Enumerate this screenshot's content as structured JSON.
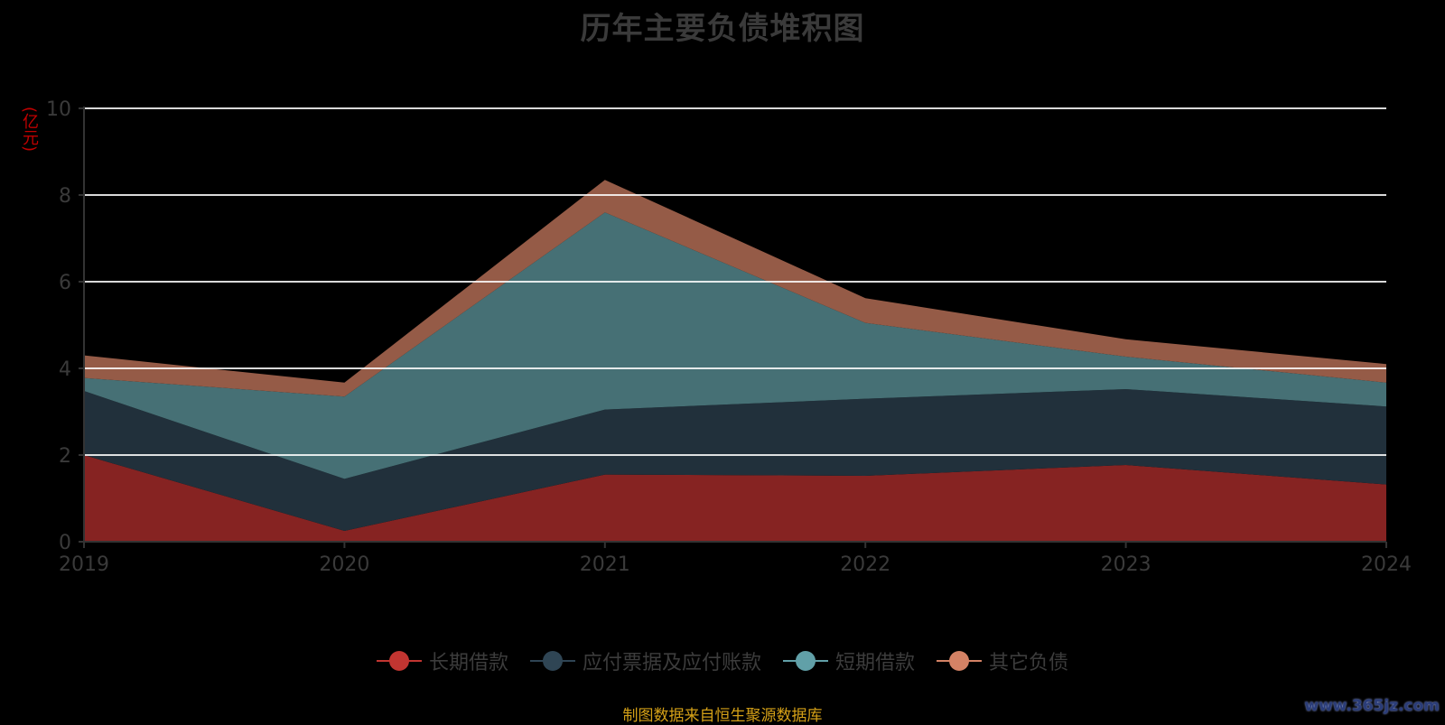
{
  "chart_data": {
    "type": "area",
    "stacked": true,
    "title": "历年主要负债堆积图",
    "ylabel": "(亿元)",
    "x": [
      "2019",
      "2020",
      "2021",
      "2022",
      "2023",
      "2024"
    ],
    "ylim": [
      0,
      10
    ],
    "yticks": [
      0,
      2,
      4,
      6,
      8,
      10
    ],
    "grid": true,
    "legend_position": "bottom",
    "series": [
      {
        "name": "长期借款",
        "color": "#c23531",
        "fill": "#862322",
        "values": [
          2.0,
          0.25,
          1.55,
          1.52,
          1.77,
          1.32
        ]
      },
      {
        "name": "应付票据及应付账款",
        "color": "#2f4554",
        "fill": "#21303b",
        "values": [
          1.48,
          1.2,
          1.5,
          1.78,
          1.75,
          1.8
        ]
      },
      {
        "name": "短期借款",
        "color": "#61a0a8",
        "fill": "#467075",
        "values": [
          0.3,
          1.9,
          4.55,
          1.75,
          0.75,
          0.55
        ]
      },
      {
        "name": "其它负债",
        "color": "#d48265",
        "fill": "#955b47",
        "values": [
          0.52,
          0.32,
          0.75,
          0.57,
          0.4,
          0.43
        ]
      }
    ]
  },
  "footer": {
    "source": "制图数据来自恒生聚源数据库",
    "watermark": "www.365jz.com"
  }
}
